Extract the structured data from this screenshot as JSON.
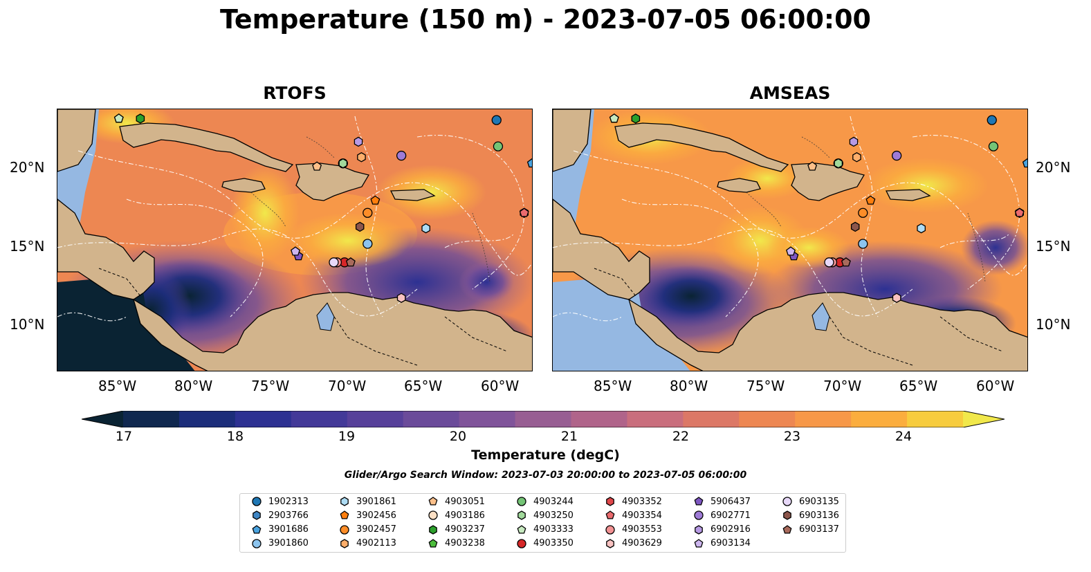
{
  "title": "Temperature (150 m) - 2023-07-05 06:00:00",
  "panels": [
    {
      "title": "RTOFS"
    },
    {
      "title": "AMSEAS"
    }
  ],
  "axes": {
    "lon_ticks": [
      "85°W",
      "80°W",
      "75°W",
      "70°W",
      "65°W",
      "60°W"
    ],
    "lat_ticks": [
      "20°N",
      "15°N",
      "10°N"
    ]
  },
  "colorbar": {
    "label": "Temperature (degC)",
    "ticks": [
      "17",
      "18",
      "19",
      "20",
      "21",
      "22",
      "23",
      "24"
    ],
    "range": [
      17,
      24.5
    ],
    "colors": [
      "#0a2333",
      "#10284f",
      "#1c2d7a",
      "#2d3192",
      "#433998",
      "#57409a",
      "#6b4b9a",
      "#80549a",
      "#985e93",
      "#b0648a",
      "#c96e7d",
      "#dc7866",
      "#ed8752",
      "#f79848",
      "#fbad3e",
      "#f7cc3e",
      "#f1e84b"
    ]
  },
  "search_window": "Glider/Argo Search Window: 2023-07-03 20:00:00 to 2023-07-05 06:00:00",
  "legend": [
    {
      "id": "1902313",
      "color": "#1f77b4",
      "shape": "circle"
    },
    {
      "id": "2903766",
      "color": "#3f86c4",
      "shape": "hexagon"
    },
    {
      "id": "3901686",
      "color": "#4aa3df",
      "shape": "pentagon"
    },
    {
      "id": "3901860",
      "color": "#8cc4ee",
      "shape": "circle"
    },
    {
      "id": "3901861",
      "color": "#aedcf4",
      "shape": "hexagon"
    },
    {
      "id": "3902456",
      "color": "#ff7f0e",
      "shape": "pentagon"
    },
    {
      "id": "3902457",
      "color": "#fd8d28",
      "shape": "circle"
    },
    {
      "id": "4902113",
      "color": "#fdae6b",
      "shape": "hexagon"
    },
    {
      "id": "4903051",
      "color": "#fdc08a",
      "shape": "pentagon"
    },
    {
      "id": "4903186",
      "color": "#fde0c5",
      "shape": "circle"
    },
    {
      "id": "4903237",
      "color": "#2ca02c",
      "shape": "hexagon"
    },
    {
      "id": "4903238",
      "color": "#4cbd3c",
      "shape": "pentagon"
    },
    {
      "id": "4903244",
      "color": "#74c476",
      "shape": "circle"
    },
    {
      "id": "4903250",
      "color": "#a1d99b",
      "shape": "hexagon"
    },
    {
      "id": "4903333",
      "color": "#c7e9c0",
      "shape": "pentagon"
    },
    {
      "id": "4903350",
      "color": "#d62728",
      "shape": "circle"
    },
    {
      "id": "4903352",
      "color": "#e0474a",
      "shape": "hexagon"
    },
    {
      "id": "4903354",
      "color": "#ea6b6e",
      "shape": "pentagon"
    },
    {
      "id": "4903553",
      "color": "#f29293",
      "shape": "circle"
    },
    {
      "id": "4903629",
      "color": "#f9c2c1",
      "shape": "hexagon"
    },
    {
      "id": "5906437",
      "color": "#7e57c2",
      "shape": "pentagon"
    },
    {
      "id": "6902771",
      "color": "#9e7bd6",
      "shape": "circle"
    },
    {
      "id": "6902916",
      "color": "#b79ae4",
      "shape": "hexagon"
    },
    {
      "id": "6903134",
      "color": "#cdb6ef",
      "shape": "pentagon"
    },
    {
      "id": "6903135",
      "color": "#e7d8f8",
      "shape": "circle"
    },
    {
      "id": "6903136",
      "color": "#8c564b",
      "shape": "hexagon"
    },
    {
      "id": "6903137",
      "color": "#a86a5c",
      "shape": "pentagon"
    }
  ],
  "chart_data": {
    "type": "heatmap",
    "projection": "lon/lat map",
    "lon_range": [
      -89,
      -58
    ],
    "lat_range": [
      7,
      24
    ],
    "variable": "Temperature (150 m)",
    "units": "degC",
    "observations": [
      {
        "id": "1902313",
        "lon": -60.4,
        "lat": 23.3
      },
      {
        "id": "2903766",
        "lon": -58.6,
        "lat": 17.3
      },
      {
        "id": "3901686",
        "lon": -58.1,
        "lat": 20.5
      },
      {
        "id": "3901860",
        "lon": -68.8,
        "lat": 15.3
      },
      {
        "id": "3901861",
        "lon": -65.0,
        "lat": 16.3
      },
      {
        "id": "3902456",
        "lon": -68.3,
        "lat": 18.1
      },
      {
        "id": "3902457",
        "lon": -68.8,
        "lat": 17.3
      },
      {
        "id": "4902113",
        "lon": -69.2,
        "lat": 20.9
      },
      {
        "id": "4903051",
        "lon": -72.1,
        "lat": 20.3
      },
      {
        "id": "4903186",
        "lon": -70.4,
        "lat": 20.5
      },
      {
        "id": "4903237",
        "lon": -83.6,
        "lat": 23.4
      },
      {
        "id": "4903238",
        "lon": -85.0,
        "lat": 23.4
      },
      {
        "id": "4903244",
        "lon": -60.3,
        "lat": 21.6
      },
      {
        "id": "4903250",
        "lon": -70.4,
        "lat": 20.5
      },
      {
        "id": "4903333",
        "lon": -85.0,
        "lat": 23.4
      },
      {
        "id": "4903350",
        "lon": -70.3,
        "lat": 14.1
      },
      {
        "id": "4903352",
        "lon": -58.6,
        "lat": 17.3
      },
      {
        "id": "4903354",
        "lon": -58.6,
        "lat": 17.3
      },
      {
        "id": "4903553",
        "lon": -70.8,
        "lat": 14.1
      },
      {
        "id": "4903629",
        "lon": -66.6,
        "lat": 11.8
      },
      {
        "id": "5906437",
        "lon": -73.3,
        "lat": 14.5
      },
      {
        "id": "6902771",
        "lon": -66.6,
        "lat": 21.0
      },
      {
        "id": "6902916",
        "lon": -69.4,
        "lat": 21.9
      },
      {
        "id": "6903134",
        "lon": -73.5,
        "lat": 14.8
      },
      {
        "id": "6903135",
        "lon": -71.0,
        "lat": 14.1
      },
      {
        "id": "6903136",
        "lon": -69.3,
        "lat": 16.4
      },
      {
        "id": "6903137",
        "lon": -69.9,
        "lat": 14.1
      }
    ]
  }
}
